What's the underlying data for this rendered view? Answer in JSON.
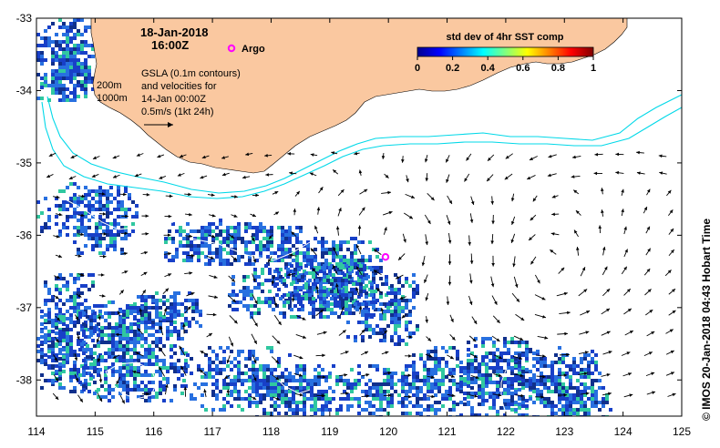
{
  "map": {
    "lon_range": [
      114,
      125
    ],
    "lat_range": [
      -38.5,
      -33
    ],
    "x_ticks": [
      "114",
      "115",
      "116",
      "117",
      "118",
      "119",
      "120",
      "121",
      "122",
      "123",
      "124",
      "125"
    ],
    "y_ticks": [
      "-33",
      "-34",
      "-35",
      "-36",
      "-37",
      "-38"
    ],
    "colors": {
      "land": "#fac8a0",
      "contour": "#00d8e8",
      "sst_high": "#1840c8",
      "sst_mid": "#2870e0",
      "sst_low": "#10308c",
      "sst_green": "#30c8a0",
      "argo": "#ff00ff"
    }
  },
  "title": {
    "date": "18-Jan-2018",
    "time": "16:00Z"
  },
  "argo": {
    "label": "Argo",
    "lon": 119.95,
    "lat": -36.3
  },
  "legend": {
    "gsla_lines": [
      "GSLA (0.1m contours)",
      "and velocities for",
      "14-Jan 00:00Z"
    ],
    "velocity_scale": "0.5m/s (1kt 24h)",
    "depth_200": "200m",
    "depth_1000": "1000m"
  },
  "colorbar": {
    "title": "std dev of 4hr SST comp",
    "ticks": [
      "0",
      "0.2",
      "0.4",
      "0.6",
      "0.8",
      "1"
    ]
  },
  "footer": {
    "credit": "© IMOS 20-Jan-2018 04:43 Hobart Time"
  }
}
